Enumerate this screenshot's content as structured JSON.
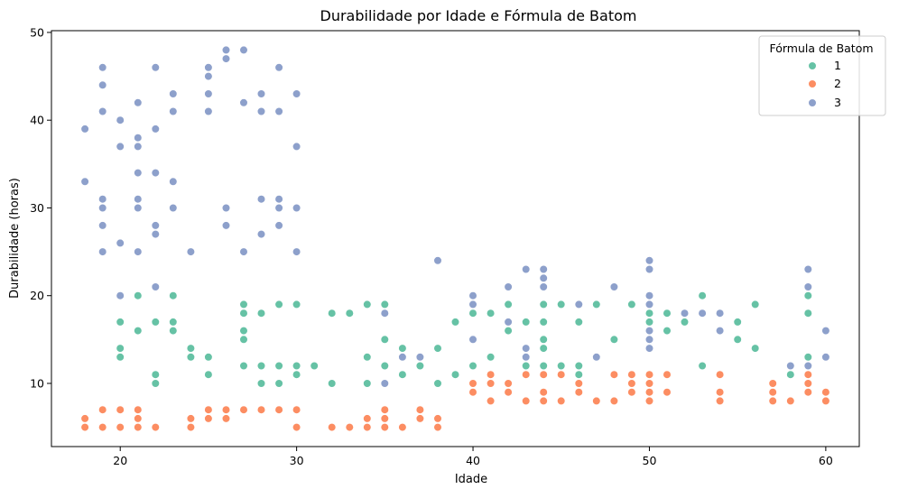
{
  "chart_data": {
    "type": "scatter",
    "title": "Durabilidade por Idade e Fórmula de Batom",
    "xlabel": "Idade",
    "ylabel": "Durabilidade (horas)",
    "xlim": [
      16.1,
      61.9
    ],
    "ylim": [
      2.8,
      50.2
    ],
    "xticks": [
      20,
      30,
      40,
      50,
      60
    ],
    "yticks": [
      10,
      20,
      30,
      40,
      50
    ],
    "grid": false,
    "legend": {
      "title": "Fórmula de Batom",
      "placement": "top-right",
      "entries": [
        "1",
        "2",
        "3"
      ]
    },
    "series": [
      {
        "name": "1",
        "color": "#66c2a5",
        "x": [
          20,
          20,
          20,
          20,
          21,
          21,
          22,
          22,
          22,
          22,
          23,
          23,
          23,
          24,
          24,
          25,
          25,
          27,
          27,
          27,
          27,
          27,
          28,
          28,
          28,
          29,
          29,
          29,
          30,
          30,
          30,
          31,
          32,
          32,
          33,
          34,
          34,
          34,
          35,
          35,
          35,
          36,
          36,
          37,
          38,
          38,
          39,
          39,
          40,
          40,
          40,
          41,
          41,
          42,
          42,
          42,
          43,
          43,
          44,
          44,
          44,
          44,
          44,
          45,
          45,
          46,
          46,
          46,
          46,
          47,
          48,
          49,
          50,
          50,
          50,
          50,
          50,
          50,
          51,
          51,
          52,
          52,
          53,
          53,
          54,
          55,
          55,
          56,
          56,
          58,
          59,
          59,
          59,
          59
        ],
        "y": [
          20,
          17,
          14,
          13,
          20,
          16,
          17,
          11,
          10,
          10,
          20,
          17,
          16,
          14,
          13,
          13,
          11,
          19,
          18,
          16,
          15,
          12,
          18,
          12,
          10,
          19,
          12,
          10,
          19,
          12,
          11,
          12,
          18,
          10,
          18,
          19,
          13,
          10,
          19,
          15,
          12,
          14,
          11,
          12,
          14,
          10,
          17,
          11,
          19,
          18,
          12,
          18,
          13,
          19,
          17,
          16,
          17,
          12,
          19,
          17,
          15,
          14,
          12,
          19,
          12,
          17,
          12,
          11,
          10,
          19,
          15,
          19,
          19,
          18,
          17,
          15,
          14,
          11,
          18,
          16,
          18,
          17,
          20,
          12,
          18,
          17,
          15,
          19,
          14,
          11,
          20,
          18,
          13,
          12
        ]
      },
      {
        "name": "2",
        "color": "#fc8d62",
        "x": [
          18,
          18,
          19,
          19,
          20,
          20,
          21,
          21,
          21,
          22,
          24,
          24,
          25,
          25,
          26,
          26,
          27,
          28,
          29,
          30,
          30,
          32,
          33,
          34,
          34,
          35,
          35,
          35,
          36,
          37,
          37,
          38,
          38,
          40,
          40,
          41,
          41,
          41,
          42,
          42,
          43,
          43,
          44,
          44,
          44,
          45,
          45,
          46,
          46,
          47,
          48,
          48,
          49,
          49,
          49,
          50,
          50,
          50,
          50,
          50,
          51,
          51,
          54,
          54,
          54,
          57,
          57,
          57,
          58,
          59,
          59,
          59,
          60,
          60
        ],
        "y": [
          6,
          5,
          7,
          5,
          7,
          5,
          7,
          6,
          5,
          5,
          6,
          5,
          7,
          6,
          7,
          6,
          7,
          7,
          7,
          7,
          5,
          5,
          5,
          6,
          5,
          7,
          6,
          5,
          5,
          7,
          6,
          6,
          5,
          10,
          9,
          11,
          10,
          8,
          10,
          9,
          11,
          8,
          11,
          9,
          8,
          11,
          8,
          10,
          9,
          8,
          11,
          8,
          11,
          10,
          9,
          11,
          10,
          9,
          8,
          8,
          11,
          9,
          11,
          9,
          8,
          10,
          9,
          8,
          8,
          11,
          10,
          9,
          9,
          8
        ]
      },
      {
        "name": "3",
        "color": "#8da0cb",
        "x": [
          18,
          18,
          19,
          19,
          19,
          19,
          19,
          19,
          19,
          20,
          20,
          20,
          20,
          21,
          21,
          21,
          21,
          21,
          21,
          21,
          22,
          22,
          22,
          22,
          22,
          22,
          23,
          23,
          23,
          23,
          24,
          25,
          25,
          25,
          25,
          26,
          26,
          26,
          26,
          27,
          27,
          27,
          28,
          28,
          28,
          28,
          29,
          29,
          29,
          29,
          29,
          30,
          30,
          30,
          30,
          35,
          35,
          36,
          37,
          38,
          40,
          40,
          40,
          42,
          42,
          43,
          43,
          43,
          44,
          44,
          44,
          46,
          47,
          48,
          50,
          50,
          50,
          50,
          50,
          50,
          50,
          52,
          53,
          54,
          54,
          58,
          59,
          59,
          59,
          60,
          60
        ],
        "y": [
          39,
          33,
          46,
          44,
          41,
          31,
          30,
          28,
          25,
          40,
          37,
          26,
          20,
          42,
          38,
          37,
          34,
          31,
          30,
          25,
          46,
          39,
          34,
          28,
          27,
          21,
          43,
          41,
          33,
          30,
          25,
          46,
          45,
          43,
          41,
          48,
          47,
          30,
          28,
          48,
          42,
          25,
          43,
          41,
          31,
          27,
          46,
          41,
          31,
          30,
          28,
          43,
          37,
          30,
          25,
          18,
          10,
          13,
          13,
          24,
          20,
          19,
          15,
          21,
          17,
          23,
          14,
          13,
          23,
          22,
          21,
          19,
          13,
          21,
          24,
          23,
          20,
          19,
          16,
          15,
          14,
          18,
          18,
          18,
          16,
          12,
          23,
          21,
          12,
          16,
          13
        ]
      }
    ]
  }
}
